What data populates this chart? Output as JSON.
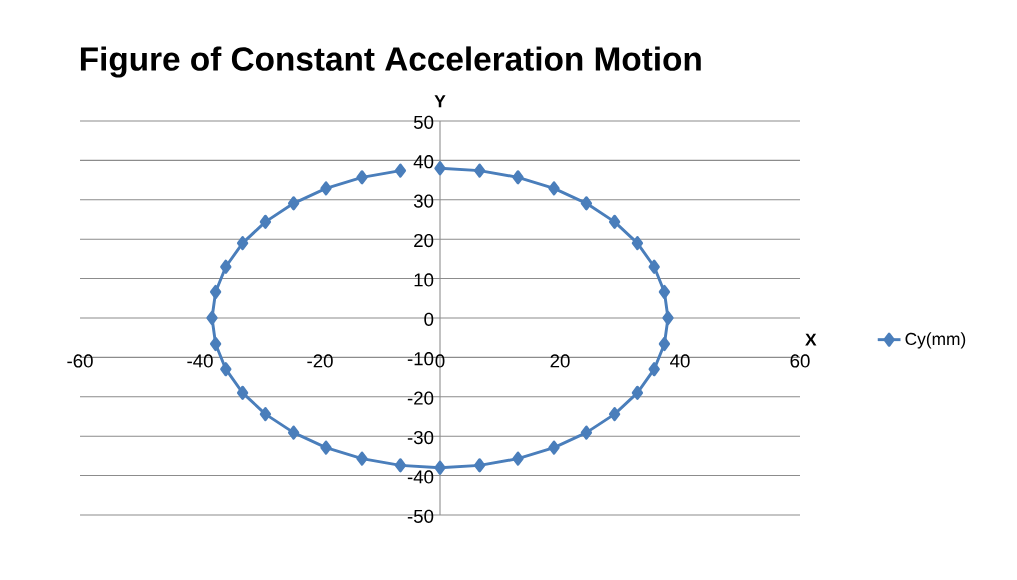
{
  "chart_data": {
    "type": "line",
    "title": "Figure of Constant Acceleration Motion",
    "xlabel": "X",
    "ylabel": "Y",
    "xlim": [
      -60,
      60
    ],
    "ylim": [
      -50,
      50
    ],
    "xticks": [
      -60,
      -40,
      -20,
      0,
      20,
      40,
      60
    ],
    "yticks": [
      -50,
      -40,
      -30,
      -20,
      -10,
      0,
      10,
      20,
      30,
      40,
      50
    ],
    "grid": "y",
    "legend": "right",
    "marker": "diamond",
    "line_style": "solid",
    "series": [
      {
        "name": "Cy(mm)",
        "color": "#4a7ebb",
        "x": [
          0,
          6.6,
          13,
          19,
          24.4,
          29.1,
          32.9,
          35.7,
          37.4,
          38,
          37.4,
          35.7,
          32.9,
          29.1,
          24.4,
          19,
          13,
          6.6,
          0,
          -6.6,
          -13,
          -19,
          -24.4,
          -29.1,
          -32.9,
          -35.7,
          -37.4,
          -38,
          -37.4,
          -35.7,
          -32.9,
          -29.1,
          -24.4,
          -19,
          -13,
          -6.6
        ],
        "values": [
          38,
          37.4,
          35.7,
          32.9,
          29.1,
          24.4,
          19,
          13,
          6.6,
          0,
          -6.6,
          -13,
          -19,
          -24.4,
          -29.1,
          -32.9,
          -35.7,
          -37.4,
          -38,
          -37.4,
          -35.7,
          -32.9,
          -29.1,
          -24.4,
          -19,
          -13,
          -6.6,
          0,
          6.6,
          13,
          19,
          24.4,
          29.1,
          32.9,
          35.7,
          37.4
        ]
      }
    ]
  }
}
